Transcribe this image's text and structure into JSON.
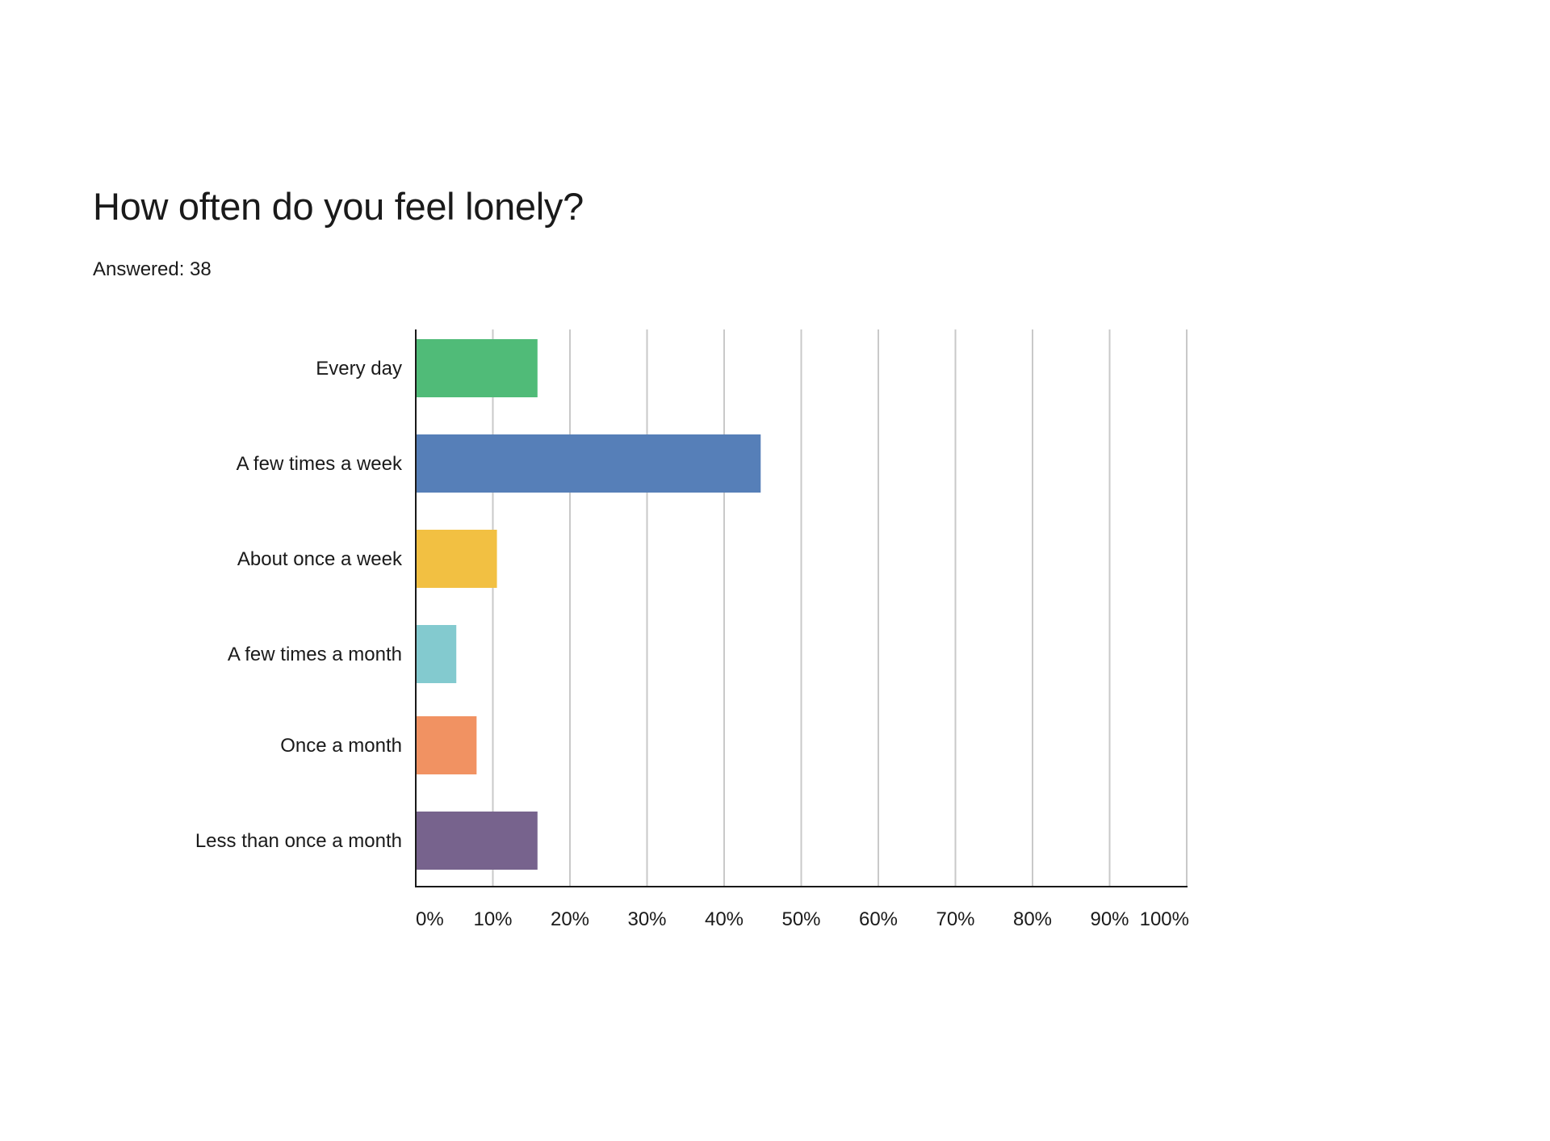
{
  "title": "How often do you feel lonely?",
  "answered": "Answered: 38",
  "chart_data": {
    "type": "bar",
    "orientation": "horizontal",
    "title": "How often do you feel lonely?",
    "subtitle": "Answered: 38",
    "categories": [
      "Every day",
      "A few times a week",
      "About once a week",
      "A few times a month",
      "Once a month",
      "Less than once a month"
    ],
    "values": [
      15.79,
      44.74,
      10.53,
      5.26,
      7.89,
      15.79
    ],
    "colors": [
      "#50bb78",
      "#567fb8",
      "#f2c042",
      "#83cacf",
      "#f19262",
      "#77638d"
    ],
    "xlim": [
      0,
      100
    ],
    "xticks": [
      "0%",
      "10%",
      "20%",
      "30%",
      "40%",
      "50%",
      "60%",
      "70%",
      "80%",
      "90%",
      "100%"
    ],
    "grid": "vertical",
    "legend": "none"
  }
}
